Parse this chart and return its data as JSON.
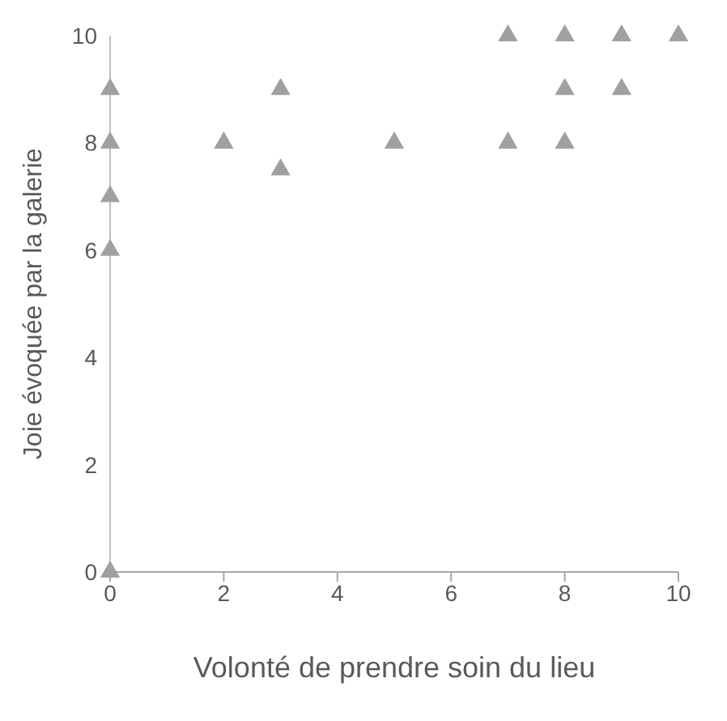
{
  "chart_data": {
    "type": "scatter",
    "xlabel": "Volonté de prendre soin du lieu",
    "ylabel": "Joie évoquée par la galerie",
    "x": [
      0,
      0,
      0,
      0,
      0,
      2,
      3,
      3,
      5,
      7,
      7,
      8,
      8,
      8,
      9,
      9,
      10
    ],
    "values": [
      0,
      6,
      7,
      8,
      9,
      8,
      9,
      7.5,
      8,
      8,
      10,
      10,
      9,
      8,
      10,
      9,
      10
    ],
    "color": "#a0a0a0",
    "marker": "triangle",
    "xlim": [
      0,
      10
    ],
    "xticks": [
      0,
      2,
      4,
      6,
      8,
      10
    ],
    "ylim": [
      0,
      10
    ],
    "yticks": [
      0,
      2,
      4,
      6,
      8,
      10
    ],
    "grid": false
  }
}
